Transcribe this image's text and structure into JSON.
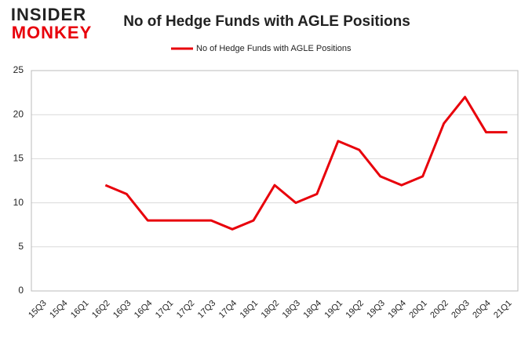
{
  "logo": {
    "top": "INSIDER",
    "bottom": "MONKEY"
  },
  "chart_data": {
    "type": "line",
    "title": "No of Hedge Funds with AGLE Positions",
    "categories": [
      "15Q3",
      "15Q4",
      "16Q1",
      "16Q2",
      "16Q3",
      "16Q4",
      "17Q1",
      "17Q2",
      "17Q3",
      "17Q4",
      "18Q1",
      "18Q2",
      "18Q3",
      "18Q4",
      "19Q1",
      "19Q2",
      "19Q3",
      "19Q4",
      "20Q1",
      "20Q2",
      "20Q3",
      "20Q4",
      "21Q1"
    ],
    "series": [
      {
        "name": "No of Hedge Funds with AGLE Positions",
        "color": "#e8000b",
        "values": [
          null,
          null,
          null,
          12,
          11,
          8,
          8,
          8,
          8,
          7,
          8,
          12,
          10,
          11,
          17,
          16,
          13,
          12,
          13,
          19,
          22,
          18,
          18
        ]
      }
    ],
    "ylim": [
      0,
      25
    ],
    "yticks": [
      0,
      5,
      10,
      15,
      20,
      25
    ],
    "grid": true,
    "legend": "top"
  }
}
